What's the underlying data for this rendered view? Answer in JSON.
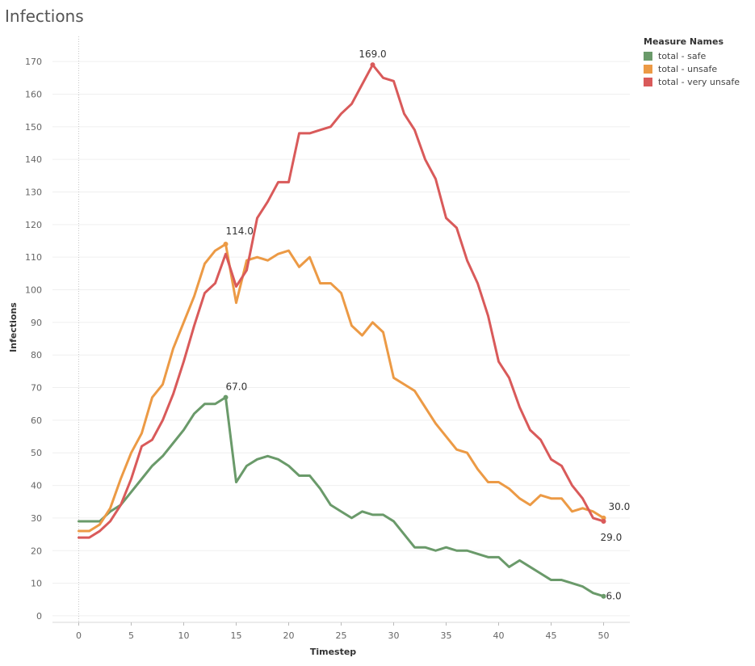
{
  "chart_data": {
    "type": "line",
    "title": "Infections",
    "xlabel": "Timestep",
    "ylabel": "Infections",
    "xlim": [
      -2.5,
      52.5
    ],
    "ylim": [
      -2,
      174
    ],
    "x_ticks": [
      0,
      5,
      10,
      15,
      20,
      25,
      30,
      35,
      40,
      45,
      50
    ],
    "y_ticks": [
      0,
      10,
      20,
      30,
      40,
      50,
      60,
      70,
      80,
      90,
      100,
      110,
      120,
      130,
      140,
      150,
      160,
      170
    ],
    "grid": true,
    "legend": {
      "title": "Measure Names",
      "position": "top-right"
    },
    "x": [
      0,
      1,
      2,
      3,
      4,
      5,
      6,
      7,
      8,
      9,
      10,
      11,
      12,
      13,
      14,
      15,
      16,
      17,
      18,
      19,
      20,
      21,
      22,
      23,
      24,
      25,
      26,
      27,
      28,
      29,
      30,
      31,
      32,
      33,
      34,
      35,
      36,
      37,
      38,
      39,
      40,
      41,
      42,
      43,
      44,
      45,
      46,
      47,
      48,
      49,
      50
    ],
    "series": [
      {
        "name": "total - safe",
        "color": "#6a9a6a",
        "values": [
          29,
          29,
          29,
          32,
          34,
          38,
          42,
          46,
          49,
          53,
          57,
          62,
          65,
          65,
          67,
          41,
          46,
          48,
          49,
          48,
          46,
          43,
          43,
          39,
          34,
          32,
          30,
          32,
          31,
          31,
          29,
          25,
          21,
          21,
          20,
          21,
          20,
          20,
          19,
          18,
          18,
          15,
          17,
          15,
          13,
          11,
          11,
          10,
          9,
          7,
          6
        ]
      },
      {
        "name": "total - unsafe",
        "color": "#ec9a45",
        "values": [
          26,
          26,
          28,
          33,
          42,
          50,
          56,
          67,
          71,
          82,
          90,
          98,
          108,
          112,
          114,
          96,
          109,
          110,
          109,
          111,
          112,
          107,
          110,
          102,
          102,
          99,
          89,
          86,
          90,
          87,
          73,
          71,
          69,
          64,
          59,
          55,
          51,
          50,
          45,
          41,
          41,
          39,
          36,
          34,
          37,
          36,
          36,
          32,
          33,
          32,
          30
        ]
      },
      {
        "name": "total - very unsafe",
        "color": "#d95a5a",
        "values": [
          24,
          24,
          26,
          29,
          34,
          42,
          52,
          54,
          60,
          68,
          78,
          89,
          99,
          102,
          111,
          101,
          106,
          122,
          127,
          133,
          133,
          148,
          148,
          149,
          150,
          154,
          157,
          163,
          169,
          165,
          164,
          154,
          149,
          140,
          134,
          122,
          119,
          109,
          102,
          92,
          78,
          73,
          64,
          57,
          54,
          48,
          46,
          40,
          36,
          30,
          29
        ]
      }
    ],
    "annotations": [
      {
        "series": 0,
        "x": 14,
        "y": 67,
        "text": "67.0"
      },
      {
        "series": 0,
        "x": 50,
        "y": 6,
        "text": "6.0"
      },
      {
        "series": 1,
        "x": 14,
        "y": 114,
        "text": "114.0"
      },
      {
        "series": 1,
        "x": 50,
        "y": 30,
        "text": "30.0"
      },
      {
        "series": 2,
        "x": 28,
        "y": 169,
        "text": "169.0"
      },
      {
        "series": 2,
        "x": 50,
        "y": 29,
        "text": "29.0"
      }
    ]
  }
}
